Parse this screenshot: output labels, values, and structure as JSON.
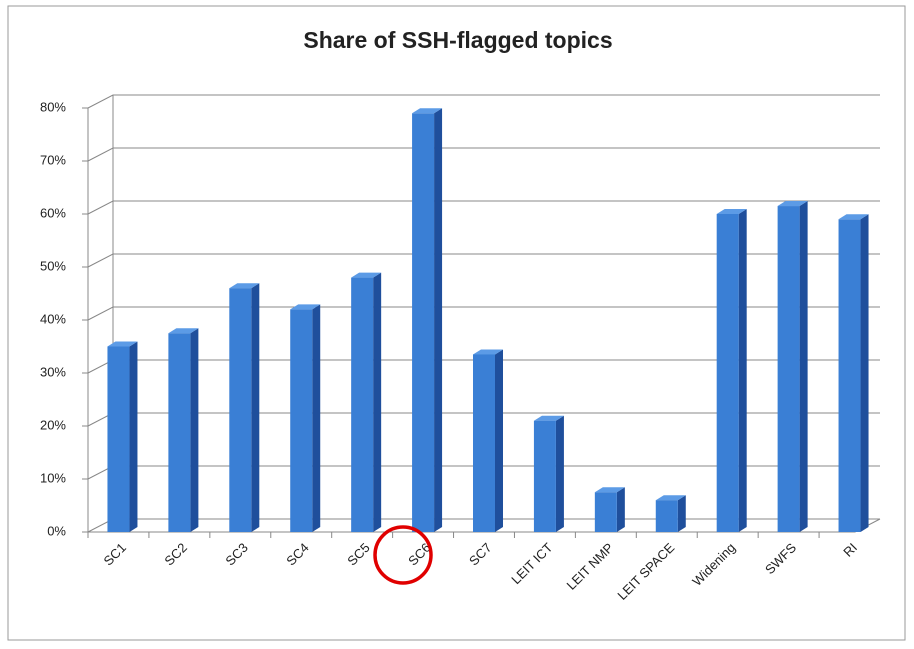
{
  "chart_data": {
    "type": "bar",
    "title": "Share of SSH-flagged topics",
    "categories": [
      "SC1",
      "SC2",
      "SC3",
      "SC4",
      "SC5",
      "SC6",
      "SC7",
      "LEIT ICT",
      "LEIT NMP",
      "LEIT SPACE",
      "Widening",
      "SWFS",
      "RI"
    ],
    "values": [
      35,
      37.5,
      46,
      42,
      48,
      79,
      33.5,
      21,
      7.5,
      6,
      60,
      61.5,
      59
    ],
    "color": "#3a7fd5",
    "ylim": [
      0,
      80
    ],
    "yticks": [
      {
        "value": 0,
        "label": "0%"
      },
      {
        "value": 10,
        "label": "10%"
      },
      {
        "value": 20,
        "label": "20%"
      },
      {
        "value": 30,
        "label": "30%"
      },
      {
        "value": 40,
        "label": "40%"
      },
      {
        "value": 50,
        "label": "50%"
      },
      {
        "value": 60,
        "label": "60%"
      },
      {
        "value": 70,
        "label": "70%"
      },
      {
        "value": 80,
        "label": "80%"
      }
    ],
    "grid": true
  }
}
